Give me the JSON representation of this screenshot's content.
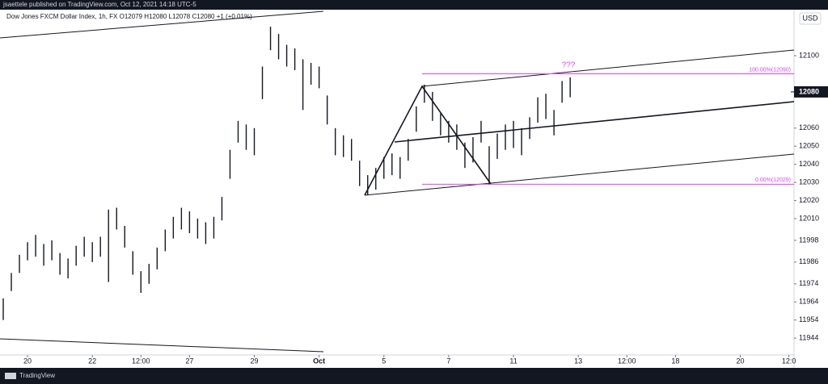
{
  "header": "jsaettele published on TradingView.com, Oct 12, 2021 14:18 UTC-5",
  "footer": "TradingView",
  "chart_data": {
    "type": "ohlc",
    "title": "Dow Jones FXCM Dollar Index, 1h, FX O12079 H12080 L12078 C12080 +1 (+0.01%)",
    "currency": "USD",
    "color": "#131722",
    "last_price": 12080,
    "x": [
      -0.75,
      -0.5,
      -0.25,
      0,
      0.25,
      0.5,
      0.75,
      1,
      1.25,
      1.5,
      1.75,
      2,
      2.25,
      2.5,
      2.75,
      3,
      3.25,
      3.5,
      3.75,
      4,
      4.25,
      4.5,
      4.75,
      5,
      5.25,
      5.5,
      5.75,
      6,
      6.25,
      6.5,
      6.75,
      7,
      7.25,
      7.5,
      7.75,
      8,
      8.25,
      8.5,
      8.75,
      9,
      9.25,
      9.5,
      9.75,
      10,
      10.25,
      10.5,
      10.75,
      11,
      11.25,
      11.5,
      11.75,
      12,
      12.25,
      12.5,
      12.75,
      13,
      13.25,
      13.5,
      13.75,
      14,
      14.25,
      14.5,
      14.75,
      15,
      15.25,
      15.5,
      15.75,
      16,
      16.25,
      16.5,
      16.75
    ],
    "high": [
      11966,
      11980,
      11990,
      11997,
      12001,
      11996,
      11998,
      11991,
      11988,
      11995,
      12000,
      11997,
      12000,
      12015,
      12016,
      12006,
      11992,
      11981,
      11985,
      11994,
      12004,
      12011,
      12016,
      12014,
      12010,
      12008,
      12011,
      12022,
      12048,
      12064,
      12062,
      12060,
      12094,
      12116,
      12112,
      12106,
      12104,
      12098,
      12096,
      12094,
      12078,
      12060,
      12056,
      12054,
      12042,
      12034,
      12038,
      12044,
      12046,
      12044,
      12054,
      12072,
      12084,
      12080,
      12068,
      12064,
      12062,
      12052,
      12055,
      12064,
      12050,
      12057,
      12062,
      12064,
      12060,
      12066,
      12077,
      12079,
      12070,
      12086,
      12088
    ],
    "low": [
      11954,
      11970,
      11980,
      11987,
      11989,
      11984,
      11987,
      11979,
      11977,
      11984,
      11989,
      11986,
      11989,
      11975,
      12004,
      11994,
      11979,
      11969,
      11974,
      11982,
      11992,
      11999,
      12004,
      12002,
      11999,
      11996,
      11999,
      12009,
      12032,
      12052,
      12048,
      12045,
      12076,
      12103,
      12098,
      12094,
      12092,
      12070,
      12084,
      12082,
      12062,
      12045,
      12044,
      12042,
      12028,
      12023,
      12026,
      12032,
      12034,
      12032,
      12042,
      12058,
      12074,
      12064,
      12056,
      12052,
      12048,
      12038,
      12041,
      12052,
      12029,
      12043,
      12048,
      12049,
      12045,
      12054,
      12063,
      12065,
      12056,
      12074,
      12077
    ],
    "xlim": [
      -0.85,
      23.66
    ],
    "ylim": [
      11934.7,
      12125.4
    ],
    "yticks": [
      12100,
      12060,
      12050,
      12040,
      12030,
      12020,
      12010,
      11998,
      11986,
      11974,
      11964,
      11954,
      11944
    ],
    "xticks": [
      {
        "value": 0,
        "label": "20"
      },
      {
        "value": 2,
        "label": "22"
      },
      {
        "value": 3.5,
        "label": "12:00"
      },
      {
        "value": 5,
        "label": "27"
      },
      {
        "value": 7,
        "label": "29"
      },
      {
        "value": 9,
        "label": "Oct"
      },
      {
        "value": 11,
        "label": "5"
      },
      {
        "value": 13,
        "label": "7"
      },
      {
        "value": 15,
        "label": "11"
      },
      {
        "value": 17,
        "label": "13"
      },
      {
        "value": 18.5,
        "label": "12:00"
      },
      {
        "value": 20,
        "label": "18"
      },
      {
        "value": 22,
        "label": "20"
      },
      {
        "value": 23.5,
        "label": "12:0"
      }
    ],
    "fib": [
      {
        "value": 12090,
        "label": "100.00%(12090)"
      },
      {
        "value": 12029,
        "label": "0.00%(12029)"
      }
    ],
    "fib_color": "#e040fb",
    "annotation": "???"
  }
}
